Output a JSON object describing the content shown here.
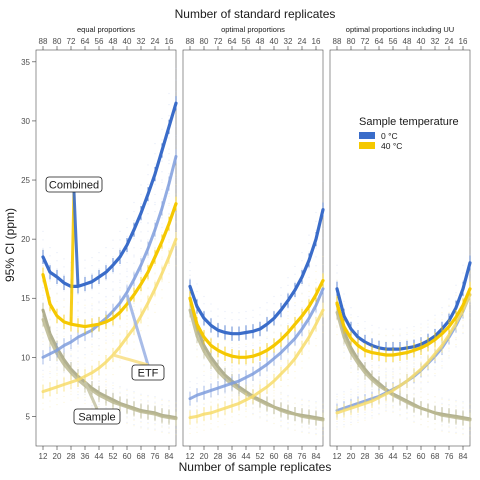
{
  "chart_data": {
    "type": "line",
    "title_top": "Number of standard replicates",
    "xlabel": "Number of sample replicates",
    "ylabel": "95% CI (ppm)",
    "ylim": [
      2.5,
      36
    ],
    "yticks": [
      5,
      10,
      15,
      20,
      25,
      30,
      35
    ],
    "y_tick_labels": [
      "5",
      "10",
      "15",
      "20",
      "25",
      "30",
      "35"
    ],
    "x_tick_values": [
      12,
      20,
      28,
      36,
      44,
      52,
      60,
      68,
      76,
      84
    ],
    "x_tick_labels": [
      "12",
      "20",
      "28",
      "36",
      "44",
      "52",
      "60",
      "68",
      "76",
      "84"
    ],
    "top_tick_labels": [
      "88",
      "80",
      "72",
      "64",
      "56",
      "48",
      "40",
      "32",
      "24",
      "16"
    ],
    "xlim": [
      8,
      88
    ],
    "grid": false,
    "colors": {
      "cold": "#3a6cc9",
      "warm": "#f5c800",
      "sample": "#a8a47c"
    },
    "legend": {
      "title": "Sample temperature",
      "placement": "top-right panel",
      "items": [
        {
          "label": "0 °C",
          "color": "#3a6cc9"
        },
        {
          "label": "40 °C",
          "color": "#f5c800"
        }
      ]
    },
    "annotations": {
      "combined": "Combined",
      "etf": "ETF",
      "sample": "Sample"
    },
    "panels": [
      {
        "label": "equal proportions",
        "series": [
          {
            "type": "combined",
            "temp": "cold",
            "x": [
              12,
              16,
              20,
              24,
              28,
              32,
              36,
              40,
              44,
              48,
              52,
              56,
              60,
              64,
              68,
              72,
              76,
              80,
              84,
              88
            ],
            "y": [
              18.5,
              17.2,
              16.8,
              16.3,
              16.0,
              16.0,
              16.2,
              16.4,
              16.8,
              17.2,
              17.8,
              18.5,
              19.5,
              20.8,
              22.2,
              23.8,
              25.5,
              27.5,
              29.5,
              31.5
            ]
          },
          {
            "type": "combined",
            "temp": "warm",
            "x": [
              12,
              16,
              20,
              24,
              28,
              32,
              36,
              40,
              44,
              48,
              52,
              56,
              60,
              64,
              68,
              72,
              76,
              80,
              84,
              88
            ],
            "y": [
              17.0,
              14.5,
              13.5,
              13.0,
              12.8,
              12.7,
              12.6,
              12.7,
              12.8,
              13.0,
              13.3,
              13.8,
              14.5,
              15.3,
              16.2,
              17.2,
              18.5,
              19.8,
              21.3,
              23.0
            ]
          },
          {
            "type": "etf",
            "temp": "cold",
            "x": [
              12,
              16,
              20,
              24,
              28,
              32,
              36,
              40,
              44,
              48,
              52,
              56,
              60,
              64,
              68,
              72,
              76,
              80,
              84,
              88
            ],
            "y": [
              10.0,
              10.3,
              10.6,
              11.0,
              11.3,
              11.7,
              12.0,
              12.3,
              12.8,
              13.3,
              13.9,
              14.6,
              15.5,
              16.6,
              17.8,
              19.2,
              20.8,
              22.6,
              24.7,
              27.0
            ]
          },
          {
            "type": "etf",
            "temp": "warm",
            "x": [
              12,
              16,
              20,
              24,
              28,
              32,
              36,
              40,
              44,
              48,
              52,
              56,
              60,
              64,
              68,
              72,
              76,
              80,
              84,
              88
            ],
            "y": [
              7.1,
              7.3,
              7.5,
              7.7,
              7.9,
              8.1,
              8.4,
              8.7,
              9.1,
              9.6,
              10.2,
              10.9,
              11.7,
              12.5,
              13.5,
              14.6,
              15.8,
              17.1,
              18.5,
              20.0
            ]
          },
          {
            "type": "sample",
            "temp": "cold",
            "x": [
              12,
              16,
              20,
              24,
              28,
              32,
              36,
              40,
              44,
              48,
              52,
              56,
              60,
              64,
              68,
              72,
              76,
              80,
              84,
              88
            ],
            "y": [
              14.0,
              12.0,
              10.8,
              9.8,
              9.0,
              8.4,
              7.9,
              7.4,
              7.0,
              6.7,
              6.4,
              6.1,
              5.9,
              5.7,
              5.5,
              5.4,
              5.3,
              5.1,
              5.0,
              4.9
            ]
          },
          {
            "type": "sample",
            "temp": "warm",
            "x": [
              12,
              16,
              20,
              24,
              28,
              32,
              36,
              40,
              44,
              48,
              52,
              56,
              60,
              64,
              68,
              72,
              76,
              80,
              84,
              88
            ],
            "y": [
              13.2,
              11.5,
              10.3,
              9.4,
              8.7,
              8.1,
              7.6,
              7.2,
              6.8,
              6.5,
              6.2,
              6.0,
              5.8,
              5.6,
              5.4,
              5.3,
              5.2,
              5.0,
              4.9,
              4.8
            ]
          }
        ]
      },
      {
        "label": "optimal proportions",
        "series": [
          {
            "type": "combined",
            "temp": "cold",
            "x": [
              12,
              16,
              20,
              24,
              28,
              32,
              36,
              40,
              44,
              48,
              52,
              56,
              60,
              64,
              68,
              72,
              76,
              80,
              84,
              88
            ],
            "y": [
              16.0,
              14.3,
              13.3,
              12.7,
              12.3,
              12.1,
              12.0,
              12.0,
              12.1,
              12.2,
              12.4,
              12.8,
              13.3,
              14.0,
              14.8,
              15.7,
              16.8,
              18.2,
              20.0,
              22.5
            ]
          },
          {
            "type": "combined",
            "temp": "warm",
            "x": [
              12,
              16,
              20,
              24,
              28,
              32,
              36,
              40,
              44,
              48,
              52,
              56,
              60,
              64,
              68,
              72,
              76,
              80,
              84,
              88
            ],
            "y": [
              15.0,
              12.8,
              11.7,
              11.0,
              10.6,
              10.3,
              10.1,
              10.0,
              10.0,
              10.1,
              10.3,
              10.6,
              11.0,
              11.5,
              12.1,
              12.8,
              13.5,
              14.3,
              15.3,
              16.5
            ]
          },
          {
            "type": "etf",
            "temp": "cold",
            "x": [
              12,
              16,
              20,
              24,
              28,
              32,
              36,
              40,
              44,
              48,
              52,
              56,
              60,
              64,
              68,
              72,
              76,
              80,
              84,
              88
            ],
            "y": [
              6.5,
              6.8,
              7.0,
              7.2,
              7.4,
              7.6,
              7.8,
              8.0,
              8.3,
              8.6,
              9.0,
              9.4,
              9.9,
              10.4,
              11.0,
              11.6,
              12.4,
              13.3,
              14.4,
              15.8
            ]
          },
          {
            "type": "etf",
            "temp": "warm",
            "x": [
              12,
              16,
              20,
              24,
              28,
              32,
              36,
              40,
              44,
              48,
              52,
              56,
              60,
              64,
              68,
              72,
              76,
              80,
              84,
              88
            ],
            "y": [
              4.9,
              5.0,
              5.2,
              5.3,
              5.5,
              5.7,
              5.9,
              6.1,
              6.4,
              6.7,
              7.1,
              7.5,
              8.0,
              8.6,
              9.2,
              9.9,
              10.8,
              11.7,
              12.8,
              14.0
            ]
          },
          {
            "type": "sample",
            "temp": "cold",
            "x": [
              12,
              16,
              20,
              24,
              28,
              32,
              36,
              40,
              44,
              48,
              52,
              56,
              60,
              64,
              68,
              72,
              76,
              80,
              84,
              88
            ],
            "y": [
              15.0,
              12.5,
              11.0,
              10.0,
              9.2,
              8.5,
              8.0,
              7.5,
              7.1,
              6.7,
              6.4,
              6.1,
              5.8,
              5.6,
              5.4,
              5.2,
              5.1,
              5.0,
              4.9,
              4.8
            ]
          },
          {
            "type": "sample",
            "temp": "warm",
            "x": [
              12,
              16,
              20,
              24,
              28,
              32,
              36,
              40,
              44,
              48,
              52,
              56,
              60,
              64,
              68,
              72,
              76,
              80,
              84,
              88
            ],
            "y": [
              14.0,
              11.8,
              10.5,
              9.6,
              8.8,
              8.2,
              7.7,
              7.3,
              6.9,
              6.6,
              6.3,
              6.0,
              5.8,
              5.5,
              5.3,
              5.2,
              5.0,
              4.9,
              4.8,
              4.7
            ]
          }
        ]
      },
      {
        "label": "optimal proportions including UU",
        "series": [
          {
            "type": "combined",
            "temp": "cold",
            "x": [
              12,
              16,
              20,
              24,
              28,
              32,
              36,
              40,
              44,
              48,
              52,
              56,
              60,
              64,
              68,
              72,
              76,
              80,
              84,
              88
            ],
            "y": [
              15.8,
              13.5,
              12.4,
              11.7,
              11.3,
              11.0,
              10.8,
              10.7,
              10.7,
              10.7,
              10.8,
              10.9,
              11.1,
              11.4,
              11.8,
              12.4,
              13.1,
              14.2,
              15.8,
              18.0
            ]
          },
          {
            "type": "combined",
            "temp": "warm",
            "x": [
              12,
              16,
              20,
              24,
              28,
              32,
              36,
              40,
              44,
              48,
              52,
              56,
              60,
              64,
              68,
              72,
              76,
              80,
              84,
              88
            ],
            "y": [
              14.6,
              12.6,
              11.6,
              11.0,
              10.6,
              10.4,
              10.3,
              10.2,
              10.2,
              10.3,
              10.4,
              10.6,
              10.8,
              11.1,
              11.5,
              12.0,
              12.6,
              13.4,
              14.4,
              15.8
            ]
          },
          {
            "type": "etf",
            "temp": "cold",
            "x": [
              12,
              16,
              20,
              24,
              28,
              32,
              36,
              40,
              44,
              48,
              52,
              56,
              60,
              64,
              68,
              72,
              76,
              80,
              84,
              88
            ],
            "y": [
              5.5,
              5.7,
              5.9,
              6.1,
              6.3,
              6.5,
              6.7,
              7.0,
              7.3,
              7.6,
              8.0,
              8.4,
              8.9,
              9.5,
              10.1,
              10.8,
              11.7,
              12.7,
              13.9,
              15.3
            ]
          },
          {
            "type": "etf",
            "temp": "warm",
            "x": [
              12,
              16,
              20,
              24,
              28,
              32,
              36,
              40,
              44,
              48,
              52,
              56,
              60,
              64,
              68,
              72,
              76,
              80,
              84,
              88
            ],
            "y": [
              5.3,
              5.5,
              5.7,
              5.9,
              6.1,
              6.3,
              6.6,
              6.9,
              7.2,
              7.6,
              8.0,
              8.5,
              9.0,
              9.6,
              10.3,
              11.0,
              11.9,
              12.9,
              14.0,
              15.3
            ]
          },
          {
            "type": "sample",
            "temp": "cold",
            "x": [
              12,
              16,
              20,
              24,
              28,
              32,
              36,
              40,
              44,
              48,
              52,
              56,
              60,
              64,
              68,
              72,
              76,
              80,
              84,
              88
            ],
            "y": [
              14.5,
              12.2,
              10.8,
              9.8,
              9.0,
              8.3,
              7.8,
              7.3,
              6.9,
              6.6,
              6.3,
              6.0,
              5.7,
              5.5,
              5.3,
              5.2,
              5.1,
              5.0,
              4.9,
              4.8
            ]
          },
          {
            "type": "sample",
            "temp": "warm",
            "x": [
              12,
              16,
              20,
              24,
              28,
              32,
              36,
              40,
              44,
              48,
              52,
              56,
              60,
              64,
              68,
              72,
              76,
              80,
              84,
              88
            ],
            "y": [
              13.8,
              11.7,
              10.4,
              9.5,
              8.7,
              8.1,
              7.6,
              7.2,
              6.8,
              6.5,
              6.2,
              5.9,
              5.7,
              5.5,
              5.3,
              5.1,
              5.0,
              4.9,
              4.8,
              4.7
            ]
          }
        ]
      }
    ]
  }
}
